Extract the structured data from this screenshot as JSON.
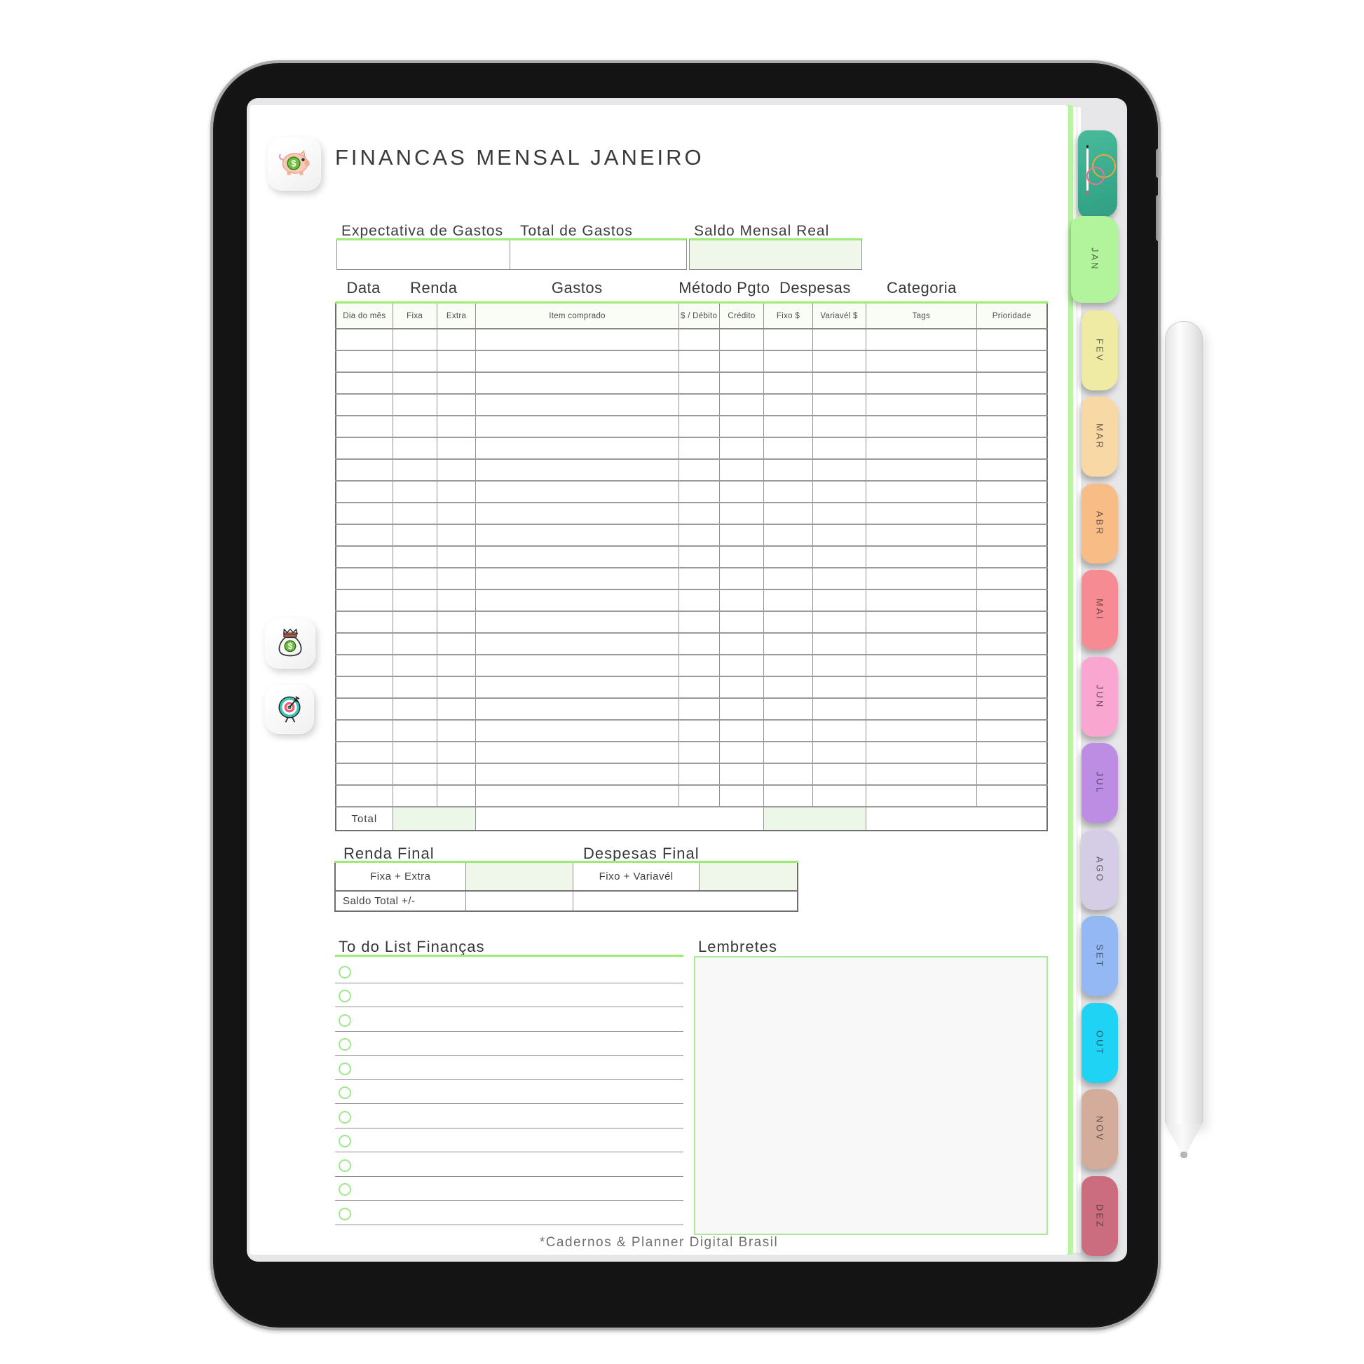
{
  "header": {
    "title": "FINANCAS MENSAL JANEIRO",
    "icon": "piggy-bank-icon"
  },
  "summary": {
    "expectativa_label": "Expectativa de Gastos",
    "expectativa_value": "",
    "total_label": "Total de Gastos",
    "total_value": "",
    "saldo_label": "Saldo Mensal Real",
    "saldo_value": ""
  },
  "expense_table": {
    "group_headers": [
      "Data",
      "Renda",
      "Gastos",
      "Método Pgto",
      "Despesas",
      "Categoria",
      ""
    ],
    "columns": [
      "Dia do mês",
      "Fixa",
      "Extra",
      "Item comprado",
      "$ / Débito",
      "Crédito",
      "Fixo $",
      "Variavél $",
      "Tags",
      "Prioridade"
    ],
    "empty_row_count": 22,
    "total_label": "Total",
    "total_values": {
      "renda": "",
      "meio": "",
      "despesas": "",
      "categoria": ""
    }
  },
  "finals": {
    "renda_title": "Renda Final",
    "despesas_title": "Despesas Final",
    "fixa_extra_label": "Fixa + Extra",
    "fixa_extra_value": "",
    "fixo_variavel_label": "Fixo + Variavél",
    "fixo_variavel_value": "",
    "saldo_total_label": "Saldo Total +/-",
    "saldo_total_value": ""
  },
  "todo": {
    "title": "To do List Finanças",
    "item_count": 11,
    "items_checked": []
  },
  "lembretes": {
    "title": "Lembretes",
    "content": ""
  },
  "footer": {
    "credit": "*Cadernos & Planner Digital Brasil"
  },
  "sidebar_icons": [
    "money-bag-icon",
    "target-icon"
  ],
  "month_tabs": [
    {
      "label": "JAN",
      "color": "#b2f49c",
      "active": true
    },
    {
      "label": "FEV",
      "color": "#efeba5",
      "active": false
    },
    {
      "label": "MAR",
      "color": "#f8d9a6",
      "active": false
    },
    {
      "label": "ABR",
      "color": "#f8bd86",
      "active": false
    },
    {
      "label": "MAI",
      "color": "#f78b94",
      "active": false
    },
    {
      "label": "JUN",
      "color": "#f9a6d1",
      "active": false
    },
    {
      "label": "JUL",
      "color": "#bd8de3",
      "active": false
    },
    {
      "label": "AGO",
      "color": "#d5cde5",
      "active": false
    },
    {
      "label": "SET",
      "color": "#94b8f4",
      "active": false
    },
    {
      "label": "OUT",
      "color": "#1ed3f3",
      "active": false
    },
    {
      "label": "NOV",
      "color": "#d3ac9c",
      "active": false
    },
    {
      "label": "DEZ",
      "color": "#cc6d7f",
      "active": false
    }
  ],
  "theme": {
    "accent_green": "#9dea74",
    "cell_green_fill": "#eef7e9",
    "grid_gray": "#949494",
    "brand_teal": "#3fb091"
  }
}
